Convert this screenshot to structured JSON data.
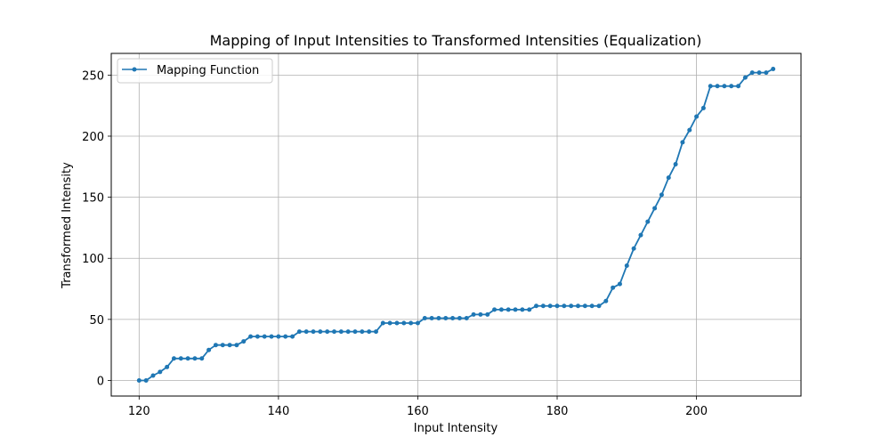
{
  "chart_data": {
    "type": "line",
    "title": "Mapping of Input Intensities to Transformed Intensities (Equalization)",
    "xlabel": "Input Intensity",
    "ylabel": "Transformed Intensity",
    "xlim": [
      116,
      215
    ],
    "ylim": [
      -12.75,
      267.75
    ],
    "xticks": [
      120,
      140,
      160,
      180,
      200
    ],
    "yticks": [
      0,
      50,
      100,
      150,
      200,
      250
    ],
    "grid": true,
    "legend_position": "top-left",
    "series": [
      {
        "name": "Mapping Function",
        "color": "#1f77b4",
        "marker": "circle",
        "x": [
          120,
          121,
          122,
          123,
          124,
          125,
          126,
          127,
          128,
          129,
          130,
          131,
          132,
          133,
          134,
          135,
          136,
          137,
          138,
          139,
          140,
          141,
          142,
          143,
          144,
          145,
          146,
          147,
          148,
          149,
          150,
          151,
          152,
          153,
          154,
          155,
          156,
          157,
          158,
          159,
          160,
          161,
          162,
          163,
          164,
          165,
          166,
          167,
          168,
          169,
          170,
          171,
          172,
          173,
          174,
          175,
          176,
          177,
          178,
          179,
          180,
          181,
          182,
          183,
          184,
          185,
          186,
          187,
          188,
          189,
          190,
          191,
          192,
          193,
          194,
          195,
          196,
          197,
          198,
          199,
          200,
          201,
          202,
          203,
          204,
          205,
          206,
          207,
          208,
          209,
          210,
          211
        ],
        "y": [
          0,
          0,
          4,
          7,
          11,
          18,
          18,
          18,
          18,
          18,
          25,
          29,
          29,
          29,
          29,
          32,
          36,
          36,
          36,
          36,
          36,
          36,
          36,
          40,
          40,
          40,
          40,
          40,
          40,
          40,
          40,
          40,
          40,
          40,
          40,
          47,
          47,
          47,
          47,
          47,
          47,
          51,
          51,
          51,
          51,
          51,
          51,
          51,
          54,
          54,
          54,
          58,
          58,
          58,
          58,
          58,
          58,
          61,
          61,
          61,
          61,
          61,
          61,
          61,
          61,
          61,
          61,
          65,
          76,
          79,
          94,
          108,
          119,
          130,
          141,
          152,
          166,
          177,
          195,
          205,
          216,
          223,
          241,
          241,
          241,
          241,
          241,
          248,
          252,
          252,
          252,
          255
        ]
      }
    ]
  }
}
